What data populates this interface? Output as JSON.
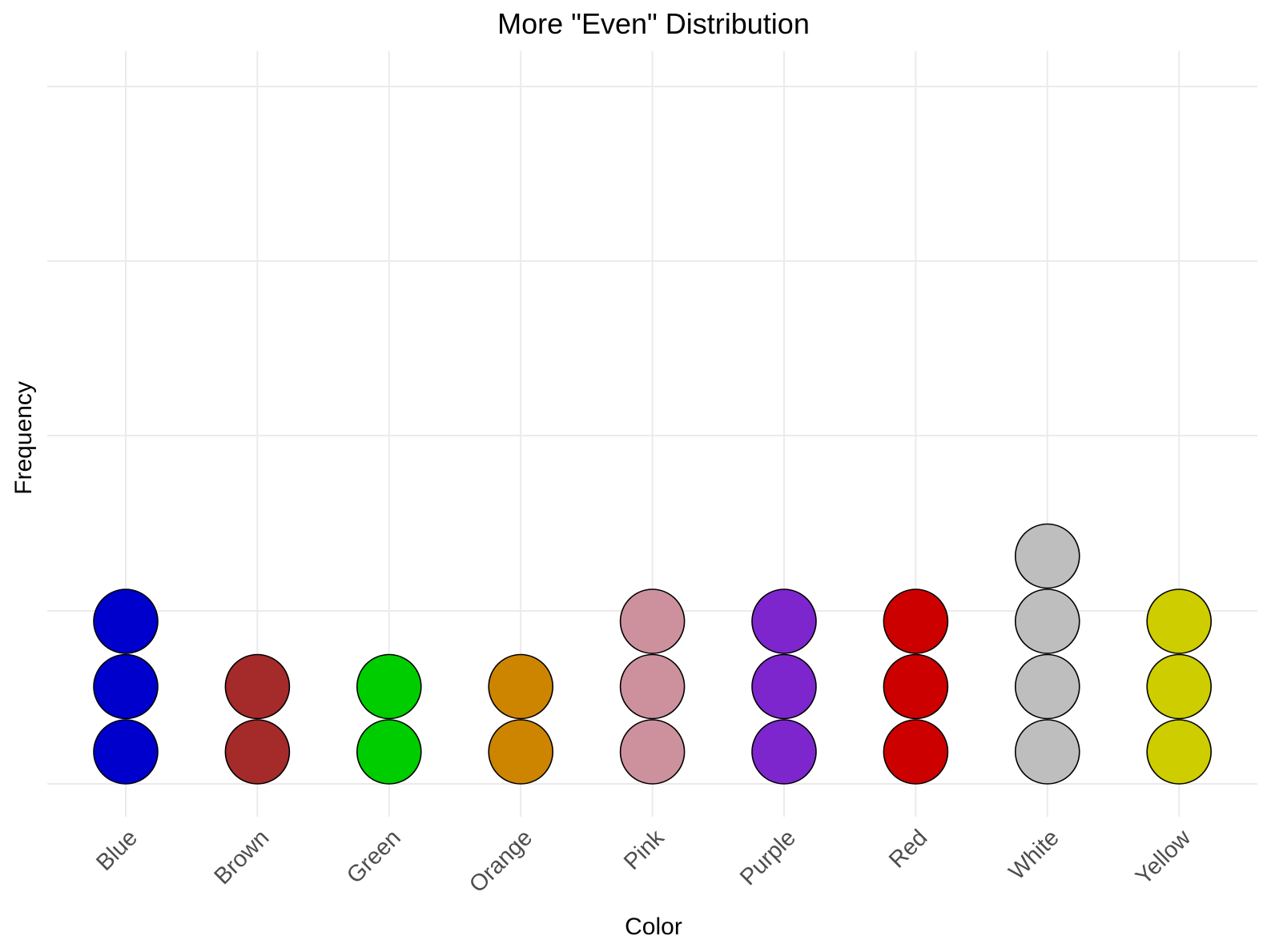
{
  "chart_data": {
    "type": "dotplot",
    "title": "More \"Even\" Distribution",
    "xlabel": "Color",
    "ylabel": "Frequency",
    "categories": [
      "Blue",
      "Brown",
      "Green",
      "Orange",
      "Pink",
      "Purple",
      "Red",
      "White",
      "Yellow"
    ],
    "values": [
      3,
      2,
      2,
      2,
      3,
      3,
      3,
      4,
      3
    ],
    "colors": [
      "#0000cd",
      "#a52a2a",
      "#00cd00",
      "#cd8500",
      "#cd919e",
      "#7d26cd",
      "#cd0000",
      "#bebebe",
      "#cdcd00"
    ],
    "y_tick_labels_shown": false,
    "grid": true,
    "legend": "none"
  }
}
